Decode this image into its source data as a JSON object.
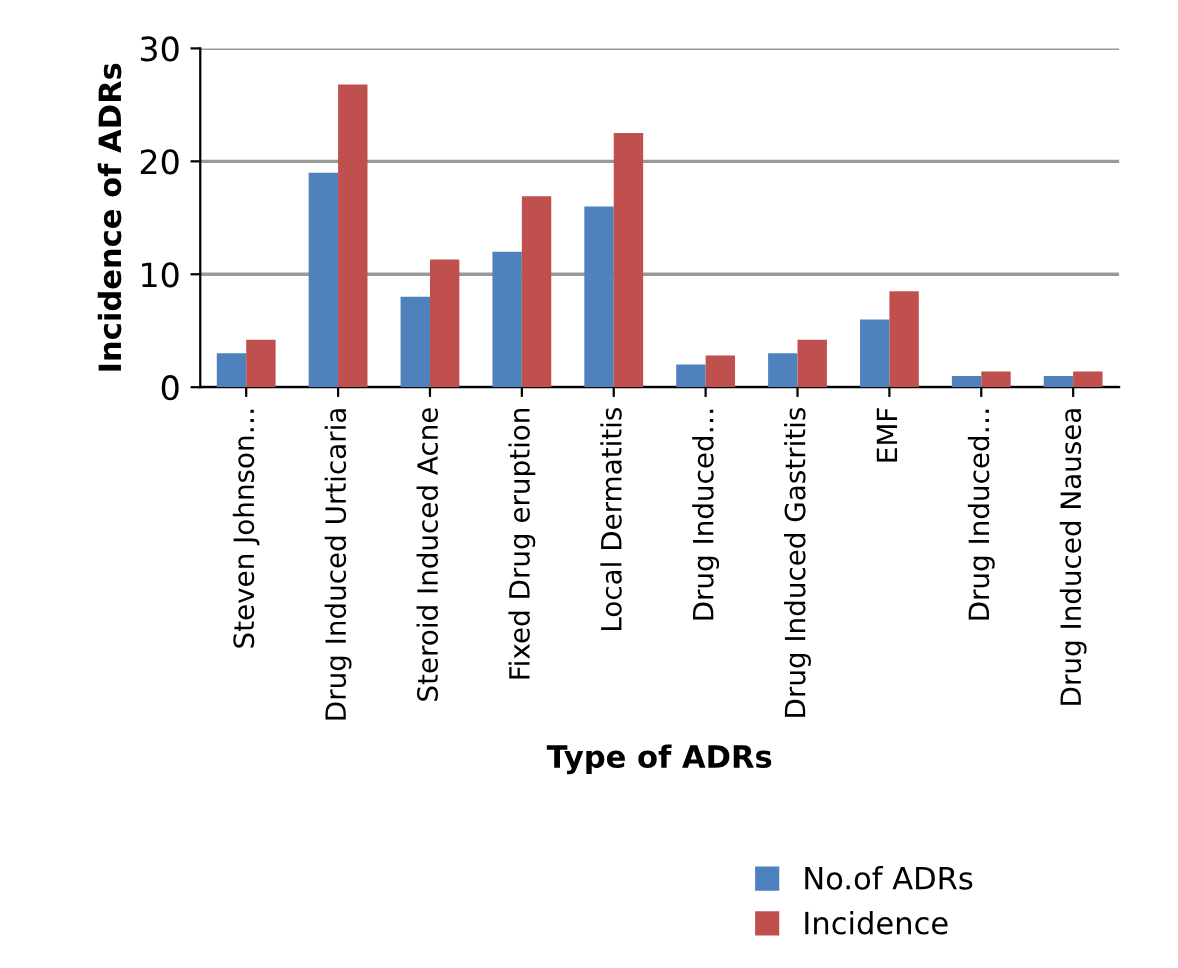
{
  "chart_data": {
    "type": "bar",
    "xlabel": "Type of ADRs",
    "ylabel": "Incidence of ADRs",
    "categories": [
      "Steven Johnson…",
      "Drug Induced Urticaria",
      "Steroid Induced Acne",
      "Fixed Drug eruption",
      "Local Dermatitis",
      "Drug Induced…",
      "Drug Induced Gastritis",
      "EMF",
      "Drug Induced…",
      "Drug Induced Nausea"
    ],
    "series": [
      {
        "name": "No.of ADRs",
        "color": "#4f81bd",
        "values": [
          3,
          19,
          8,
          12,
          16,
          2,
          3,
          6,
          1,
          1
        ]
      },
      {
        "name": "Incidence",
        "color": "#c0504d",
        "values": [
          4.2,
          26.8,
          11.3,
          16.9,
          22.5,
          2.8,
          4.2,
          8.5,
          1.4,
          1.4
        ]
      }
    ],
    "ylim": [
      0,
      30
    ],
    "yticks": [
      0,
      10,
      20,
      30
    ],
    "grid": "y",
    "legend": "bottom right"
  }
}
